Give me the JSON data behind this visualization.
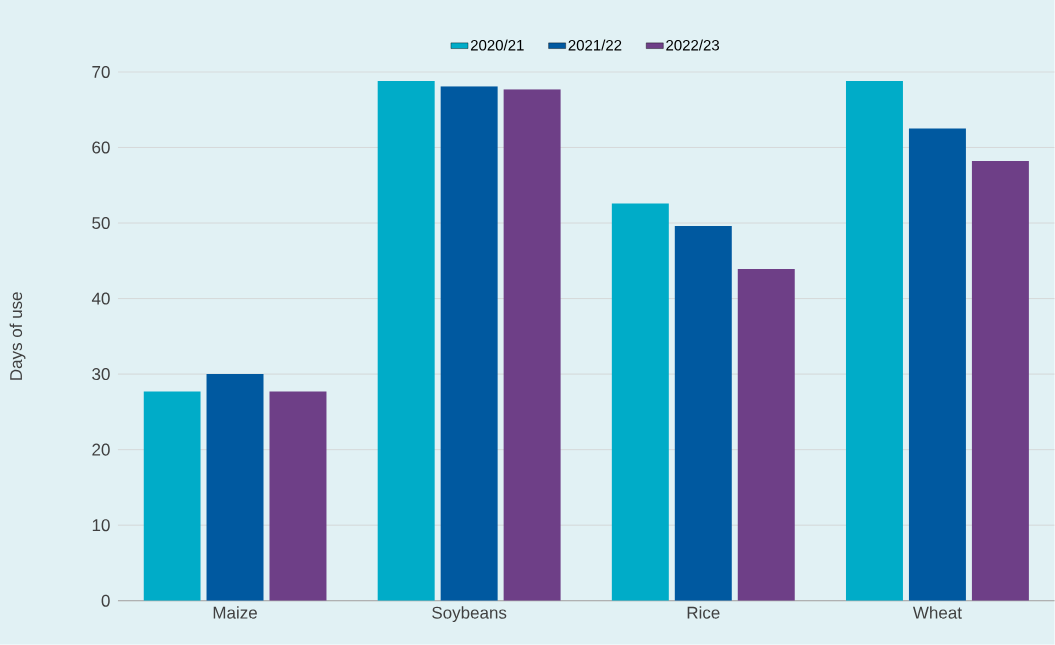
{
  "chart_data": {
    "type": "bar",
    "ylabel": "Days of use",
    "categories": [
      "Maize",
      "Soybeans",
      "Rice",
      "Wheat"
    ],
    "series": [
      {
        "name": "2020/21",
        "color": "#00acc8",
        "values": [
          27.7,
          68.8,
          52.6,
          68.8
        ]
      },
      {
        "name": "2021/22",
        "color": "#0059a0",
        "values": [
          30.0,
          68.1,
          49.6,
          62.5
        ]
      },
      {
        "name": "2022/23",
        "color": "#6e3f87",
        "values": [
          27.7,
          67.7,
          43.9,
          58.2
        ]
      }
    ],
    "ylim": [
      0,
      70
    ],
    "yticks": [
      0,
      10,
      20,
      30,
      40,
      50,
      60,
      70
    ],
    "grid": "y",
    "legend": "top"
  }
}
